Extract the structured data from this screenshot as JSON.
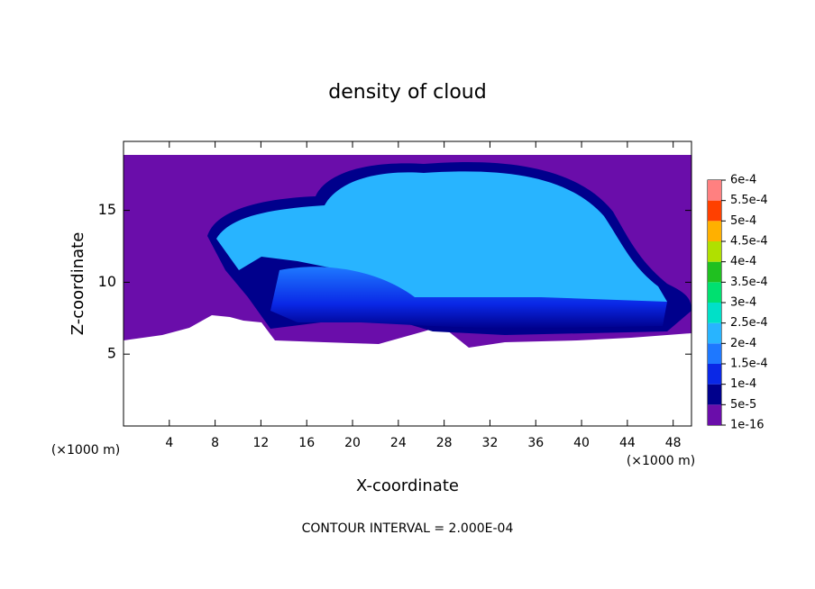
{
  "chart_data": {
    "type": "contour",
    "title": "density of cloud",
    "xlabel": "X-coordinate",
    "ylabel": "Z-coordinate",
    "x_unit": "(×1000 m)",
    "y_unit": "(×1000 m)",
    "footer": "CONTOUR INTERVAL = 2.000E-04",
    "xlim": [
      0,
      49.6
    ],
    "ylim": [
      0,
      19.8
    ],
    "xticks": [
      4,
      8,
      12,
      16,
      20,
      24,
      28,
      32,
      36,
      40,
      44,
      48
    ],
    "yticks": [
      5,
      10,
      15
    ],
    "colorbar": {
      "ticks": [
        {
          "value": 1e-16,
          "label": "1e-16"
        },
        {
          "value": 5e-05,
          "label": "5e-5"
        },
        {
          "value": 0.0001,
          "label": "1e-4"
        },
        {
          "value": 0.00015,
          "label": "1.5e-4"
        },
        {
          "value": 0.0002,
          "label": "2e-4"
        },
        {
          "value": 0.00025,
          "label": "2.5e-4"
        },
        {
          "value": 0.0003,
          "label": "3e-4"
        },
        {
          "value": 0.00035,
          "label": "3.5e-4"
        },
        {
          "value": 0.0004,
          "label": "4e-4"
        },
        {
          "value": 0.00045,
          "label": "4.5e-4"
        },
        {
          "value": 0.0005,
          "label": "5e-4"
        },
        {
          "value": 0.00055,
          "label": "5.5e-4"
        },
        {
          "value": 0.0006,
          "label": "6e-4"
        }
      ],
      "colors": [
        "#6a0daa",
        "#00008c",
        "#0a28e6",
        "#1e78ff",
        "#28b4ff",
        "#00e0c8",
        "#00e070",
        "#20c020",
        "#b0e000",
        "#ffb000",
        "#ff4000",
        "#ff8080"
      ]
    }
  }
}
